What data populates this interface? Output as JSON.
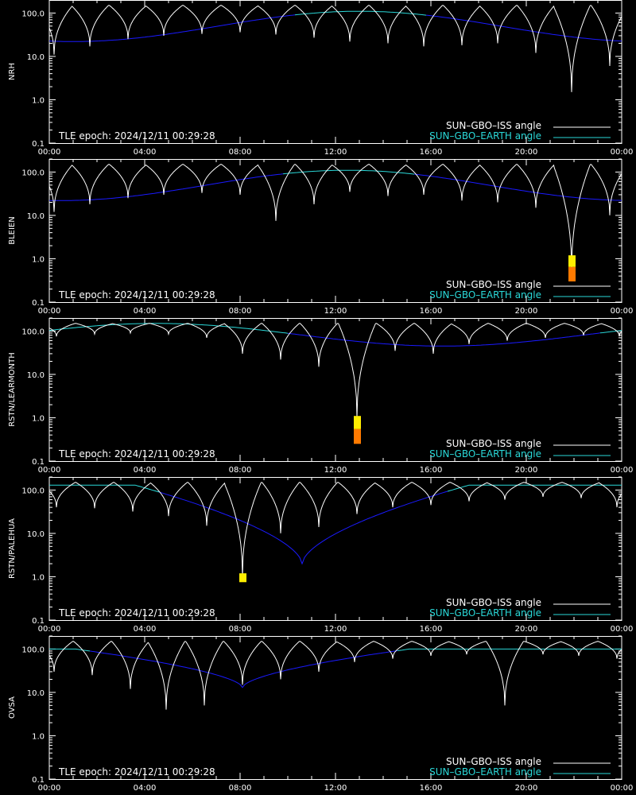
{
  "colors": {
    "background": "#000000",
    "iss_angle": "#ffffff",
    "earth_angle_day": "#2ad8d8",
    "earth_angle_night": "#1a1aff",
    "flag_yellow": "#ffee00",
    "flag_orange": "#ff7a00"
  },
  "legend": {
    "iss": "SUN–GBO–ISS angle",
    "earth": "SUN–GBO–EARTH angle"
  },
  "epoch_text": "TLE epoch: 2024/12/11 00:29:28",
  "x_tick_labels": [
    "00:00",
    "04:00",
    "08:00",
    "12:00",
    "16:00",
    "20:00",
    "00:00"
  ],
  "y_tick_labels": [
    "100.0",
    "10.0",
    "1.0",
    "0.1"
  ],
  "chart_data": [
    {
      "type": "line",
      "ylabel": "NRH",
      "y_scale": "log",
      "ylim": [
        0.1,
        200
      ],
      "x_unit": "hours",
      "xlim": [
        0,
        24
      ],
      "earth_angle": {
        "base": 55,
        "amplitude": 50,
        "peak_hour": 13
      },
      "iss_orbits": [
        {
          "t": 0.2,
          "min": 11
        },
        {
          "t": 1.7,
          "min": 17
        },
        {
          "t": 3.3,
          "min": 25
        },
        {
          "t": 4.8,
          "min": 30
        },
        {
          "t": 6.4,
          "min": 33
        },
        {
          "t": 8.0,
          "min": 36
        },
        {
          "t": 9.5,
          "min": 32
        },
        {
          "t": 11.1,
          "min": 27
        },
        {
          "t": 12.6,
          "min": 22
        },
        {
          "t": 14.2,
          "min": 20
        },
        {
          "t": 15.7,
          "min": 17
        },
        {
          "t": 17.3,
          "min": 18
        },
        {
          "t": 18.8,
          "min": 20
        },
        {
          "t": 20.4,
          "min": 12
        },
        {
          "t": 21.9,
          "min": 1.5
        },
        {
          "t": 23.5,
          "min": 6
        }
      ],
      "flags": []
    },
    {
      "type": "line",
      "ylabel": "BLEIEN",
      "y_scale": "log",
      "ylim": [
        0.1,
        200
      ],
      "x_unit": "hours",
      "xlim": [
        0,
        24
      ],
      "earth_angle": {
        "base": 60,
        "amplitude": 45,
        "peak_hour": 12.5
      },
      "iss_orbits": [
        {
          "t": 0.2,
          "min": 12
        },
        {
          "t": 1.7,
          "min": 18
        },
        {
          "t": 3.3,
          "min": 25
        },
        {
          "t": 4.8,
          "min": 30
        },
        {
          "t": 6.4,
          "min": 33
        },
        {
          "t": 8.0,
          "min": 30
        },
        {
          "t": 9.5,
          "min": 7.5
        },
        {
          "t": 11.1,
          "min": 18
        },
        {
          "t": 12.6,
          "min": 35
        },
        {
          "t": 14.2,
          "min": 28
        },
        {
          "t": 15.7,
          "min": 30
        },
        {
          "t": 17.3,
          "min": 22
        },
        {
          "t": 18.8,
          "min": 20
        },
        {
          "t": 20.4,
          "min": 15
        },
        {
          "t": 21.9,
          "min": 0.5
        },
        {
          "t": 23.5,
          "min": 10
        }
      ],
      "flags": [
        {
          "t": 21.9,
          "yellow": [
            0.65,
            1.2
          ],
          "orange": [
            0.3,
            0.65
          ]
        }
      ]
    },
    {
      "type": "line",
      "ylabel": "RSTN/LEARMONTH",
      "y_scale": "log",
      "ylim": [
        0.1,
        200
      ],
      "x_unit": "hours",
      "xlim": [
        0,
        24
      ],
      "earth_angle": {
        "base": 85,
        "amplitude": 80,
        "peak_hour": 4.5,
        "min_value": 45,
        "min_hour": 16.5
      },
      "iss_orbits": [
        {
          "t": 0.3,
          "min": 75
        },
        {
          "t": 1.9,
          "min": 85
        },
        {
          "t": 3.4,
          "min": 90
        },
        {
          "t": 5.0,
          "min": 85
        },
        {
          "t": 6.6,
          "min": 70
        },
        {
          "t": 8.1,
          "min": 30
        },
        {
          "t": 9.7,
          "min": 22
        },
        {
          "t": 11.3,
          "min": 15
        },
        {
          "t": 12.9,
          "min": 1.0
        },
        {
          "t": 14.5,
          "min": 35
        },
        {
          "t": 16.1,
          "min": 30
        },
        {
          "t": 17.6,
          "min": 50
        },
        {
          "t": 19.2,
          "min": 60
        },
        {
          "t": 20.8,
          "min": 70
        },
        {
          "t": 22.4,
          "min": 80
        },
        {
          "t": 23.9,
          "min": 75
        }
      ],
      "flags": [
        {
          "t": 12.9,
          "yellow": [
            0.55,
            1.1
          ],
          "orange": [
            0.25,
            0.55
          ]
        }
      ]
    },
    {
      "type": "line",
      "ylabel": "RSTN/PALEHUA",
      "y_scale": "log",
      "ylim": [
        0.1,
        200
      ],
      "x_unit": "hours",
      "xlim": [
        0,
        24
      ],
      "earth_angle": {
        "base": 130,
        "amplitude": 0,
        "peak_hour": 0,
        "min_value": 2,
        "min_hour": 10.6
      },
      "iss_orbits": [
        {
          "t": 0.3,
          "min": 40
        },
        {
          "t": 1.9,
          "min": 38
        },
        {
          "t": 3.5,
          "min": 32
        },
        {
          "t": 5.0,
          "min": 25
        },
        {
          "t": 6.6,
          "min": 15
        },
        {
          "t": 8.1,
          "min": 1.0
        },
        {
          "t": 9.7,
          "min": 10
        },
        {
          "t": 11.3,
          "min": 14
        },
        {
          "t": 12.9,
          "min": 28
        },
        {
          "t": 14.4,
          "min": 40
        },
        {
          "t": 16.0,
          "min": 45
        },
        {
          "t": 17.6,
          "min": 55
        },
        {
          "t": 19.1,
          "min": 60
        },
        {
          "t": 20.7,
          "min": 70
        },
        {
          "t": 22.3,
          "min": 65
        },
        {
          "t": 23.8,
          "min": 40
        }
      ],
      "flags": [
        {
          "t": 8.1,
          "yellow": [
            0.75,
            1.2
          ],
          "orange": null
        }
      ]
    },
    {
      "type": "line",
      "ylabel": "OVSA",
      "y_scale": "log",
      "ylim": [
        0.1,
        200
      ],
      "x_unit": "hours",
      "xlim": [
        0,
        24
      ],
      "earth_angle": {
        "base": 100,
        "amplitude": 0,
        "peak_hour": 0,
        "min_value": 13,
        "min_hour": 8.1
      },
      "iss_orbits": [
        {
          "t": 0.2,
          "min": 30
        },
        {
          "t": 1.8,
          "min": 25
        },
        {
          "t": 3.4,
          "min": 12
        },
        {
          "t": 4.9,
          "min": 4
        },
        {
          "t": 6.5,
          "min": 5
        },
        {
          "t": 8.1,
          "min": 15
        },
        {
          "t": 9.7,
          "min": 20
        },
        {
          "t": 11.3,
          "min": 30
        },
        {
          "t": 12.8,
          "min": 50
        },
        {
          "t": 14.4,
          "min": 60
        },
        {
          "t": 16.0,
          "min": 70
        },
        {
          "t": 17.5,
          "min": 75
        },
        {
          "t": 19.1,
          "min": 5
        },
        {
          "t": 20.7,
          "min": 75
        },
        {
          "t": 22.2,
          "min": 70
        },
        {
          "t": 23.8,
          "min": 60
        }
      ],
      "flags": []
    }
  ]
}
